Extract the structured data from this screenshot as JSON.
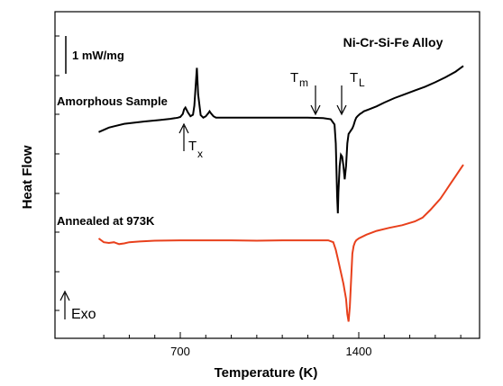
{
  "chart_data": {
    "type": "line",
    "title": "Ni-Cr-Si-Fe Alloy",
    "xlabel": "Temperature (K)",
    "ylabel": "Heat Flow",
    "xticks": [
      700,
      1400
    ],
    "xlim": [
      360,
      1830
    ],
    "y_units": "mW/mg",
    "scale_bar_label": "1 mW/mg",
    "scale_bar_value": 1,
    "exo_label": "Exo",
    "series": [
      {
        "name": "Amorphous Sample",
        "color": "#000000",
        "x": [
          380,
          420,
          480,
          560,
          620,
          660,
          680,
          690,
          700,
          710,
          715,
          720,
          730,
          740,
          750,
          755,
          760,
          765,
          770,
          780,
          790,
          800,
          810,
          815,
          820,
          830,
          840,
          860,
          900,
          1000,
          1100,
          1200,
          1260,
          1290,
          1305,
          1310,
          1315,
          1318,
          1320,
          1325,
          1330,
          1335,
          1340,
          1345,
          1350,
          1355,
          1360,
          1365,
          1370,
          1375,
          1380,
          1385,
          1390,
          1395,
          1400,
          1405,
          1410,
          1420,
          1440,
          1470,
          1500,
          1540,
          1580,
          1620,
          1660,
          1700,
          1740,
          1780,
          1810
        ],
        "y": [
          -0.4,
          -0.28,
          -0.18,
          -0.12,
          -0.08,
          -0.05,
          -0.03,
          -0.02,
          0.0,
          0.08,
          0.2,
          0.25,
          0.12,
          0.02,
          0.06,
          0.3,
          0.8,
          1.3,
          0.6,
          0.05,
          -0.02,
          0.02,
          0.1,
          0.15,
          0.1,
          0.02,
          -0.02,
          -0.02,
          -0.02,
          -0.02,
          -0.02,
          -0.02,
          -0.03,
          -0.06,
          -0.2,
          -0.7,
          -2.1,
          -2.55,
          -2.0,
          -1.3,
          -1.0,
          -1.05,
          -1.3,
          -1.65,
          -1.3,
          -0.7,
          -0.45,
          -0.4,
          -0.35,
          -0.3,
          -0.22,
          -0.1,
          -0.02,
          0.02,
          0.05,
          0.08,
          0.1,
          0.15,
          0.2,
          0.28,
          0.38,
          0.5,
          0.6,
          0.7,
          0.8,
          0.92,
          1.05,
          1.2,
          1.35
        ]
      },
      {
        "name": "Annealed at 973K",
        "color": "#e8401c",
        "x": [
          380,
          400,
          420,
          440,
          460,
          480,
          500,
          540,
          600,
          700,
          800,
          900,
          1000,
          1100,
          1200,
          1250,
          1280,
          1300,
          1310,
          1320,
          1330,
          1340,
          1350,
          1355,
          1360,
          1365,
          1370,
          1375,
          1380,
          1385,
          1390,
          1400,
          1430,
          1470,
          1520,
          1570,
          1620,
          1650,
          1680,
          1700,
          1720,
          1740,
          1760,
          1780,
          1800,
          1810
        ],
        "y": [
          0.0,
          -0.1,
          -0.12,
          -0.1,
          -0.15,
          -0.13,
          -0.1,
          -0.08,
          -0.06,
          -0.05,
          -0.05,
          -0.05,
          -0.06,
          -0.05,
          -0.05,
          -0.05,
          -0.05,
          -0.1,
          -0.3,
          -0.6,
          -0.9,
          -1.2,
          -1.6,
          -2.0,
          -2.2,
          -1.8,
          -1.1,
          -0.4,
          -0.2,
          -0.1,
          -0.05,
          0.0,
          0.1,
          0.2,
          0.28,
          0.35,
          0.45,
          0.55,
          0.75,
          0.9,
          1.05,
          1.25,
          1.45,
          1.65,
          1.85,
          1.95
        ]
      }
    ],
    "annotations": [
      {
        "label": "T",
        "sub": "x",
        "x": 705
      },
      {
        "label": "T",
        "sub": "m",
        "x": 1305
      },
      {
        "label": "T",
        "sub": "L",
        "x": 1390
      }
    ],
    "legend_labels": [
      "Amorphous Sample",
      "Annealed at 973K"
    ]
  }
}
